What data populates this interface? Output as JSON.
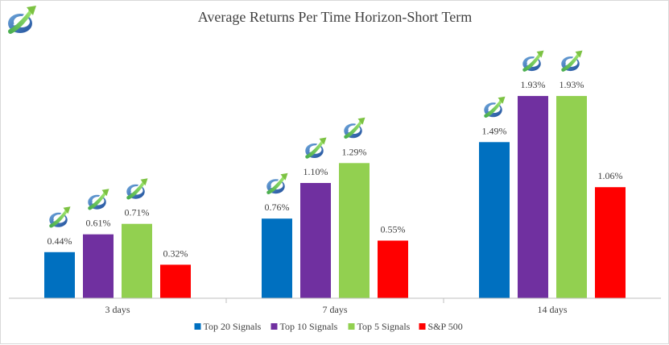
{
  "chart_data": {
    "type": "bar",
    "title": "Average Returns Per Time Horizon-Short Term",
    "categories": [
      "3 days",
      "7 days",
      "14 days"
    ],
    "series": [
      {
        "name": "Top 20 Signals",
        "color": "#0070c0",
        "values": [
          0.44,
          0.76,
          1.49
        ],
        "labels": [
          "0.44%",
          "0.76%",
          "1.49%"
        ],
        "logo": true
      },
      {
        "name": "Top 10 Signals",
        "color": "#7030a0",
        "values": [
          0.61,
          1.1,
          1.93
        ],
        "labels": [
          "0.61%",
          "1.10%",
          "1.93%"
        ],
        "logo": true
      },
      {
        "name": "Top 5 Signals",
        "color": "#92d050",
        "values": [
          0.71,
          1.29,
          1.93
        ],
        "labels": [
          "0.71%",
          "1.29%",
          "1.93%"
        ],
        "logo": true
      },
      {
        "name": "S&P 500",
        "color": "#ff0000",
        "values": [
          0.32,
          0.55,
          1.06
        ],
        "labels": [
          "0.32%",
          "0.55%",
          "1.06%"
        ],
        "logo": false
      }
    ],
    "ylim": [
      0,
      2.25
    ],
    "grid": false,
    "legend_position": "bottom",
    "xlabel": "",
    "ylabel": ""
  },
  "logo": {
    "name": "arrow-swoosh-logo"
  }
}
